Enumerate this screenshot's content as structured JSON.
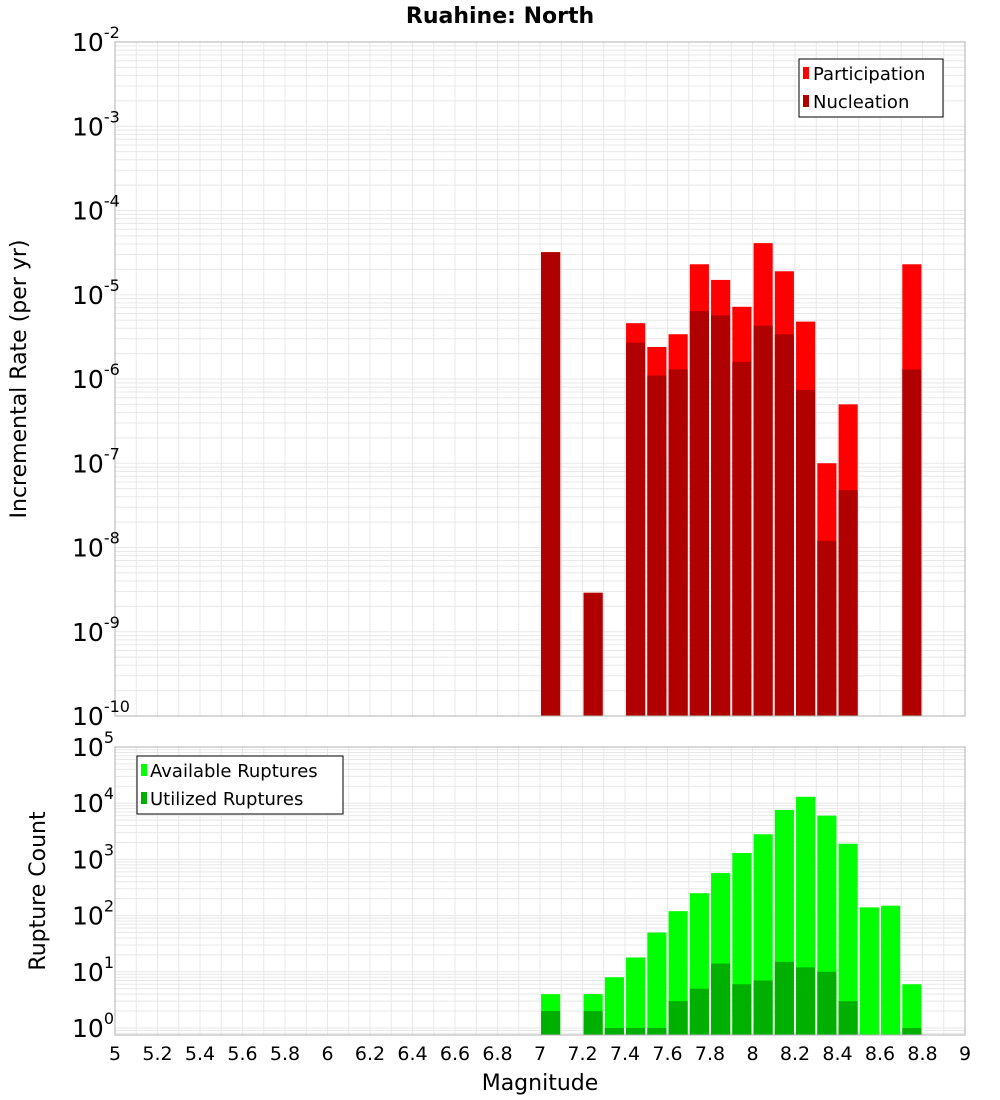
{
  "colors": {
    "participation": "#ff0000",
    "nucleation": "#b00000",
    "available": "#00ff00",
    "utilized": "#00b000",
    "grid": "#e8e8e8",
    "frame": "#b0b0b0"
  },
  "chart_data": [
    {
      "type": "bar",
      "title": "Ruahine: North",
      "xlabel": "",
      "ylabel": "Incremental Rate (per yr)",
      "xlim": [
        5,
        9
      ],
      "ylim": [
        1e-10,
        0.01
      ],
      "log_y": true,
      "grid": true,
      "legend_position": "top-right",
      "y_ticks": [
        {
          "base": "10",
          "exp": "-10"
        },
        {
          "base": "10",
          "exp": "-9"
        },
        {
          "base": "10",
          "exp": "-8"
        },
        {
          "base": "10",
          "exp": "-7"
        },
        {
          "base": "10",
          "exp": "-6"
        },
        {
          "base": "10",
          "exp": "-5"
        },
        {
          "base": "10",
          "exp": "-4"
        },
        {
          "base": "10",
          "exp": "-3"
        },
        {
          "base": "10",
          "exp": "-2"
        }
      ],
      "x": [
        7.05,
        7.25,
        7.45,
        7.55,
        7.65,
        7.75,
        7.85,
        7.95,
        8.05,
        8.15,
        8.25,
        8.35,
        8.45,
        8.75
      ],
      "series": [
        {
          "name": "Participation",
          "values": [
            3.2e-05,
            2.9e-09,
            4.6e-06,
            2.4e-06,
            3.4e-06,
            2.3e-05,
            1.5e-05,
            7.2e-06,
            4.1e-05,
            1.9e-05,
            4.8e-06,
            1e-07,
            5e-07,
            2.3e-05
          ]
        },
        {
          "name": "Nucleation",
          "values": [
            3.2e-05,
            2.9e-09,
            2.7e-06,
            1.1e-06,
            1.3e-06,
            6.4e-06,
            5.7e-06,
            1.6e-06,
            4.3e-06,
            3.4e-06,
            7.4e-07,
            1.2e-08,
            4.8e-08,
            1.3e-06
          ]
        }
      ]
    },
    {
      "type": "bar",
      "title": "",
      "xlabel": "Magnitude",
      "ylabel": "Rupture Count",
      "xlim": [
        5,
        9
      ],
      "ylim": [
        0.75,
        100000
      ],
      "log_y": true,
      "grid": true,
      "legend_position": "top-left",
      "x_ticks": [
        "5",
        "5.2",
        "5.4",
        "5.6",
        "5.8",
        "6",
        "6.2",
        "6.4",
        "6.6",
        "6.8",
        "7",
        "7.2",
        "7.4",
        "7.6",
        "7.8",
        "8",
        "8.2",
        "8.4",
        "8.6",
        "8.8",
        "9"
      ],
      "y_ticks": [
        {
          "base": "10",
          "exp": "0",
          "value": 1
        },
        {
          "base": "10",
          "exp": "1",
          "value": 10
        },
        {
          "base": "10",
          "exp": "2",
          "value": 100
        },
        {
          "base": "10",
          "exp": "3",
          "value": 1000
        },
        {
          "base": "10",
          "exp": "4",
          "value": 10000
        },
        {
          "base": "10",
          "exp": "5",
          "value": 100000
        }
      ],
      "x": [
        7.05,
        7.25,
        7.35,
        7.45,
        7.55,
        7.65,
        7.75,
        7.85,
        7.95,
        8.05,
        8.15,
        8.25,
        8.35,
        8.45,
        8.55,
        8.65,
        8.75
      ],
      "series": [
        {
          "name": "Available Ruptures",
          "values": [
            4,
            4,
            8,
            18,
            50,
            120,
            250,
            570,
            1300,
            2800,
            7600,
            13000,
            6000,
            1900,
            140,
            150,
            6
          ]
        },
        {
          "name": "Utilized Ruptures",
          "values": [
            2,
            2,
            1,
            1,
            1,
            3,
            5,
            14,
            6,
            7,
            15,
            12,
            10,
            3,
            0,
            0,
            1
          ]
        }
      ]
    }
  ]
}
